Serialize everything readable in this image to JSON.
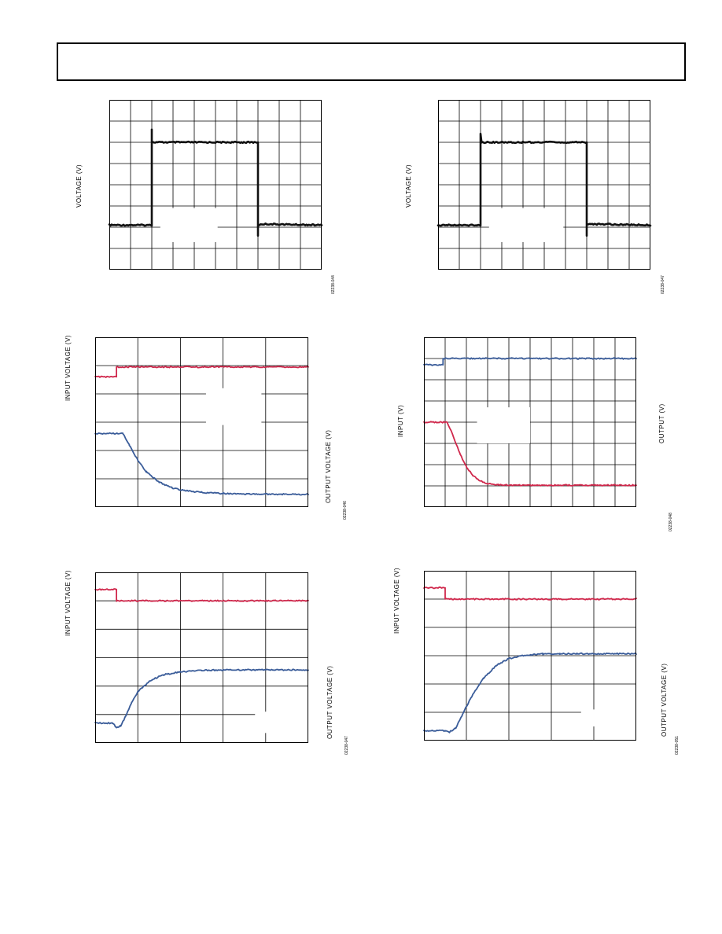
{
  "colors": {
    "black_trace": "#111111",
    "red_trace": "#d0284c",
    "blue_trace": "#3a5c99",
    "grid": "#000000",
    "background": "#ffffff"
  },
  "chart_data": [
    {
      "id": "fig-top-left",
      "type": "line",
      "grid": true,
      "grid_divisions": [
        10,
        8
      ],
      "xlim": [
        0,
        10
      ],
      "ylim": [
        0,
        8
      ],
      "ylabel": "VOLTAGE (V)",
      "figure_code": "02238-044",
      "series": [
        {
          "color": "#111111",
          "x": [
            0,
            2.0,
            2.0,
            2.0,
            2.05,
            7.0,
            7.0,
            7.0,
            7.3,
            10
          ],
          "y": [
            2.1,
            2.1,
            6.6,
            6.0,
            6.0,
            6.0,
            1.6,
            2.1,
            2.15,
            2.1
          ]
        }
      ],
      "masks": [
        {
          "x": [
            2.4,
            5.1
          ],
          "y": [
            1.3,
            2.9
          ]
        }
      ]
    },
    {
      "id": "fig-top-right",
      "type": "line",
      "grid": true,
      "grid_divisions": [
        10,
        8
      ],
      "xlim": [
        0,
        10
      ],
      "ylim": [
        0,
        8
      ],
      "ylabel": "VOLTAGE (V)",
      "figure_code": "02238-047",
      "series": [
        {
          "color": "#111111",
          "x": [
            0,
            2.0,
            2.0,
            2.05,
            2.1,
            7.0,
            7.0,
            7.0,
            7.2,
            10
          ],
          "y": [
            2.1,
            2.1,
            6.4,
            6.0,
            6.0,
            6.0,
            1.6,
            2.1,
            2.15,
            2.1
          ]
        }
      ],
      "masks": [
        {
          "x": [
            2.4,
            5.9
          ],
          "y": [
            1.3,
            2.9
          ]
        }
      ]
    },
    {
      "id": "fig-mid-left",
      "type": "line",
      "grid": true,
      "grid_divisions": [
        5,
        6
      ],
      "xlim": [
        0,
        5
      ],
      "ylim": [
        0,
        6
      ],
      "ylabel": "INPUT VOLTAGE (V)",
      "y2label": "OUTPUT VOLTAGE (V)",
      "figure_code": "02238-046",
      "series": [
        {
          "color": "#d0284c",
          "x": [
            0,
            0.5,
            0.5,
            5
          ],
          "y": [
            4.6,
            4.6,
            4.95,
            4.95
          ]
        },
        {
          "color": "#3a5c99",
          "x": [
            0,
            0.65,
            0.8,
            1.0,
            1.2,
            1.5,
            1.8,
            2.1,
            2.5,
            3.0,
            3.5,
            4.0,
            5
          ],
          "y": [
            2.6,
            2.6,
            2.2,
            1.65,
            1.25,
            0.88,
            0.68,
            0.58,
            0.52,
            0.48,
            0.46,
            0.46,
            0.45
          ]
        }
      ],
      "masks": [
        {
          "x": [
            2.6,
            3.9
          ],
          "y": [
            2.9,
            4.2
          ]
        },
        {
          "x": [
            2.05,
            2.9
          ],
          "y": [
            -0.1,
            0.95
          ]
        }
      ]
    },
    {
      "id": "fig-mid-right",
      "type": "line",
      "grid": true,
      "grid_divisions": [
        10,
        8
      ],
      "xlim": [
        0,
        10
      ],
      "ylim": [
        0,
        8
      ],
      "ylabel": "INPUT (V)",
      "y2label": "OUTPUT (V)",
      "figure_code": "02238-048",
      "series": [
        {
          "color": "#3a5c99",
          "x": [
            0,
            0.9,
            0.9,
            10
          ],
          "y": [
            6.7,
            6.7,
            7.0,
            7.0
          ]
        },
        {
          "color": "#d0284c",
          "x": [
            0,
            1.1,
            1.4,
            1.7,
            2.0,
            2.3,
            2.6,
            3.0,
            3.5,
            4.0,
            10
          ],
          "y": [
            4.0,
            4.0,
            3.3,
            2.5,
            1.9,
            1.5,
            1.25,
            1.1,
            1.05,
            1.03,
            1.03
          ]
        }
      ],
      "masks": [
        {
          "x": [
            2.5,
            5.0
          ],
          "y": [
            3.0,
            4.7
          ]
        }
      ]
    },
    {
      "id": "fig-bottom-left",
      "type": "line",
      "grid": true,
      "grid_divisions": [
        5,
        6
      ],
      "xlim": [
        0,
        5
      ],
      "ylim": [
        0,
        6
      ],
      "ylabel": "INPUT VOLTAGE (V)",
      "y2label": "OUTPUT VOLTAGE (V)",
      "figure_code": "02238-047",
      "series": [
        {
          "color": "#d0284c",
          "x": [
            0,
            0.5,
            0.5,
            5
          ],
          "y": [
            5.4,
            5.4,
            5.0,
            5.0
          ]
        },
        {
          "color": "#3a5c99",
          "x": [
            0,
            0.4,
            0.5,
            0.6,
            0.7,
            0.85,
            1.0,
            1.3,
            1.6,
            2.0,
            2.5,
            3.0,
            3.5,
            5
          ],
          "y": [
            0.7,
            0.7,
            0.55,
            0.6,
            0.9,
            1.4,
            1.8,
            2.2,
            2.4,
            2.5,
            2.55,
            2.57,
            2.57,
            2.57
          ]
        }
      ],
      "masks": [
        {
          "x": [
            3.75,
            5.05
          ],
          "y": [
            0.35,
            1.1
          ]
        }
      ]
    },
    {
      "id": "fig-bottom-right",
      "type": "line",
      "grid": true,
      "grid_divisions": [
        5,
        6
      ],
      "xlim": [
        0,
        5
      ],
      "ylim": [
        0,
        6
      ],
      "ylabel": "INPUT VOLTAGE (V)",
      "y2label": "OUTPUT VOLTAGE (V)",
      "figure_code": "02238-051",
      "series": [
        {
          "color": "#d0284c",
          "x": [
            0,
            0.5,
            0.5,
            5
          ],
          "y": [
            5.4,
            5.4,
            5.0,
            5.0
          ]
        },
        {
          "color": "#3a5c99",
          "x": [
            0,
            0.5,
            0.6,
            0.75,
            0.9,
            1.1,
            1.4,
            1.7,
            2.0,
            2.4,
            2.8,
            3.2,
            3.6,
            5
          ],
          "y": [
            0.35,
            0.35,
            0.3,
            0.45,
            0.9,
            1.5,
            2.2,
            2.65,
            2.9,
            3.02,
            3.06,
            3.07,
            3.07,
            3.07
          ]
        }
      ],
      "masks": [
        {
          "x": [
            3.7,
            5.05
          ],
          "y": [
            0.5,
            1.1
          ]
        }
      ]
    }
  ]
}
